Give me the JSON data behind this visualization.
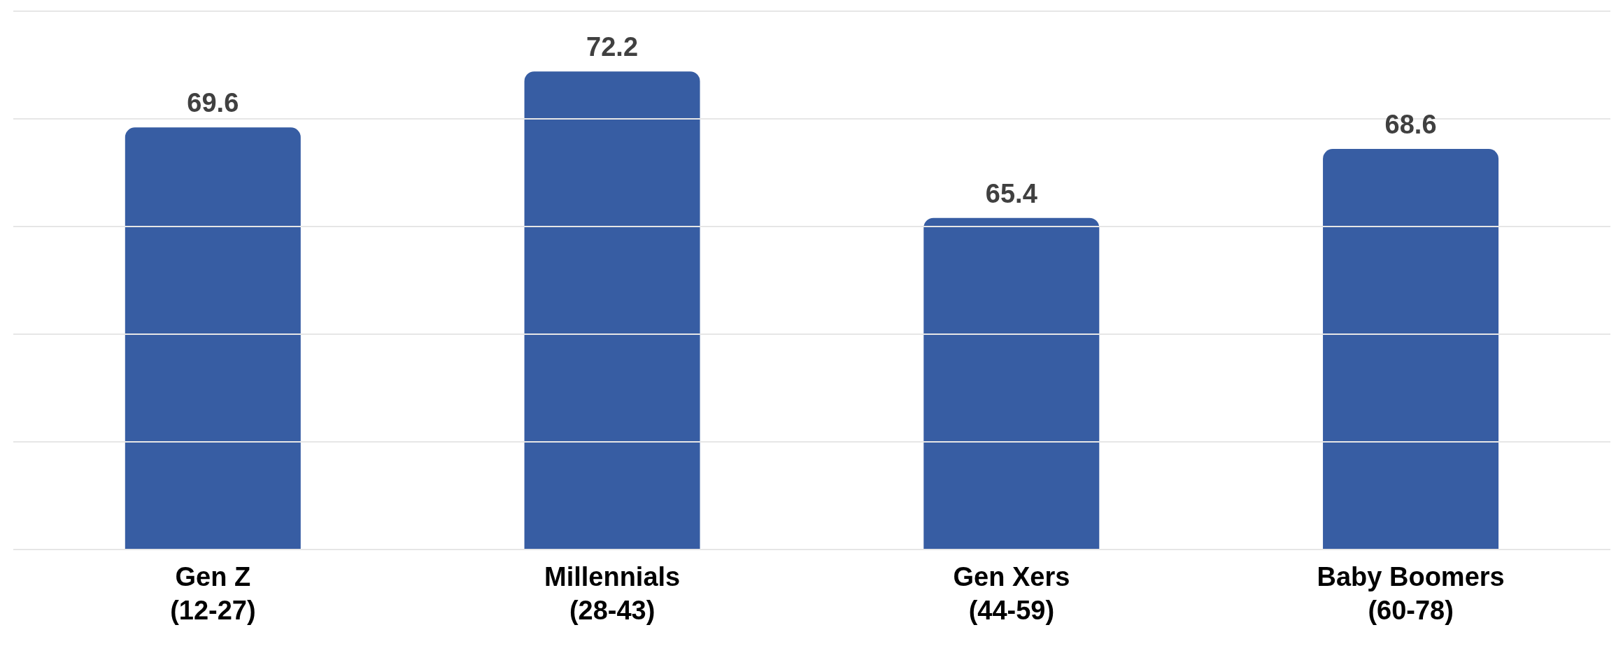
{
  "chart_data": {
    "type": "bar",
    "categories": [
      "Gen Z\n(12-27)",
      "Millennials\n(28-43)",
      "Gen Xers\n(44-59)",
      "Baby Boomers\n(60-78)"
    ],
    "values": [
      69.6,
      72.2,
      65.4,
      68.6
    ],
    "color": "#375da3",
    "ylim": [
      50,
      75
    ],
    "yticks": [
      {
        "value": 50,
        "label": null
      },
      {
        "value": 55,
        "label": null
      },
      {
        "value": 60,
        "label": null
      },
      {
        "value": 65,
        "label": null
      },
      {
        "value": 70,
        "label": null
      },
      {
        "value": 75,
        "label": null
      }
    ],
    "tick_labels": "x",
    "grid": "y",
    "data_labels": true
  }
}
